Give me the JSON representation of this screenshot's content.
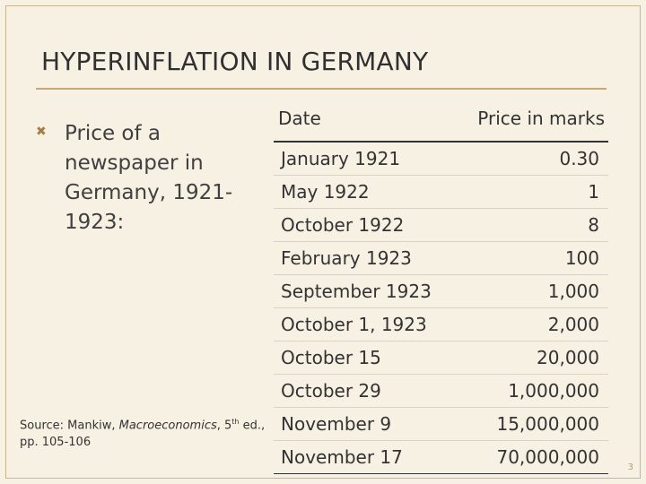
{
  "slide": {
    "title": "HYPERINFLATION IN GERMANY",
    "bullet": "Price of a newspaper in Germany, 1921-1923:",
    "source_prefix": "Source: Mankiw, ",
    "source_title": "Macroeconomics",
    "source_mid": ", 5",
    "source_sup": "th",
    "source_suffix": " ed., pp. 105-106",
    "slide_number": "3"
  },
  "table": {
    "headers": [
      "Date",
      "Price in marks"
    ],
    "rows": [
      [
        "January 1921",
        "0.30"
      ],
      [
        "May 1922",
        "1"
      ],
      [
        "October 1922",
        "8"
      ],
      [
        "February 1923",
        "100"
      ],
      [
        "September 1923",
        "1,000"
      ],
      [
        "October 1, 1923",
        "2,000"
      ],
      [
        "October 15",
        "20,000"
      ],
      [
        "October 29",
        "1,000,000"
      ],
      [
        "November 9",
        "15,000,000"
      ],
      [
        "November 17",
        "70,000,000"
      ]
    ]
  },
  "colors": {
    "background": "#f7f1e4",
    "accent": "#c8a877",
    "bullet": "#a47e46"
  },
  "icons": {
    "bullet": "x-mark-icon"
  }
}
